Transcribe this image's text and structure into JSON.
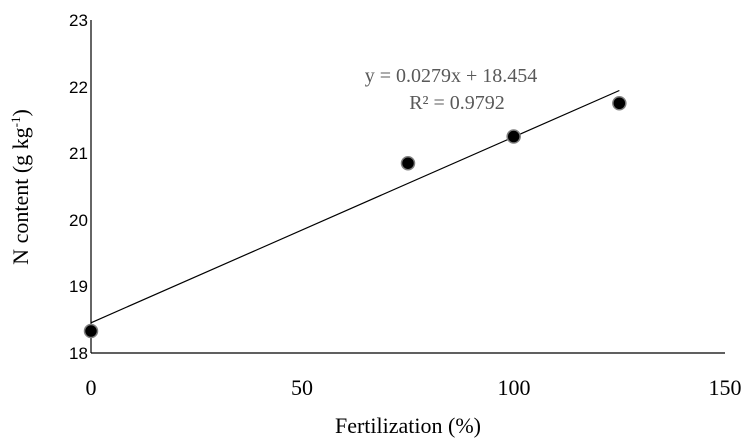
{
  "chart_data": {
    "type": "scatter",
    "xlabel": "Fertilization (%)",
    "ylabel": {
      "main": "N content (g kg",
      "superscript": "-1",
      "close": ")"
    },
    "xlim": [
      0,
      150
    ],
    "ylim": [
      18,
      23
    ],
    "x_ticks": [
      "0",
      "50",
      "100",
      "150"
    ],
    "y_ticks": [
      "18",
      "19",
      "20",
      "21",
      "22",
      "23"
    ],
    "grid": false,
    "points": [
      {
        "x": 0,
        "y": 18.33
      },
      {
        "x": 75,
        "y": 20.85
      },
      {
        "x": 100,
        "y": 21.25
      },
      {
        "x": 125,
        "y": 21.75
      }
    ],
    "trendline": {
      "type": "linear",
      "slope": 0.0279,
      "intercept": 18.454,
      "equation": "y = 0.0279x + 18.454",
      "r_squared": "R² = 0.9792"
    },
    "colors": {
      "marker_fill": "#000000",
      "marker_stroke": "#7f7f7f",
      "trendline": "#000000",
      "equation_text": "#595959",
      "axis": "#000000"
    }
  }
}
